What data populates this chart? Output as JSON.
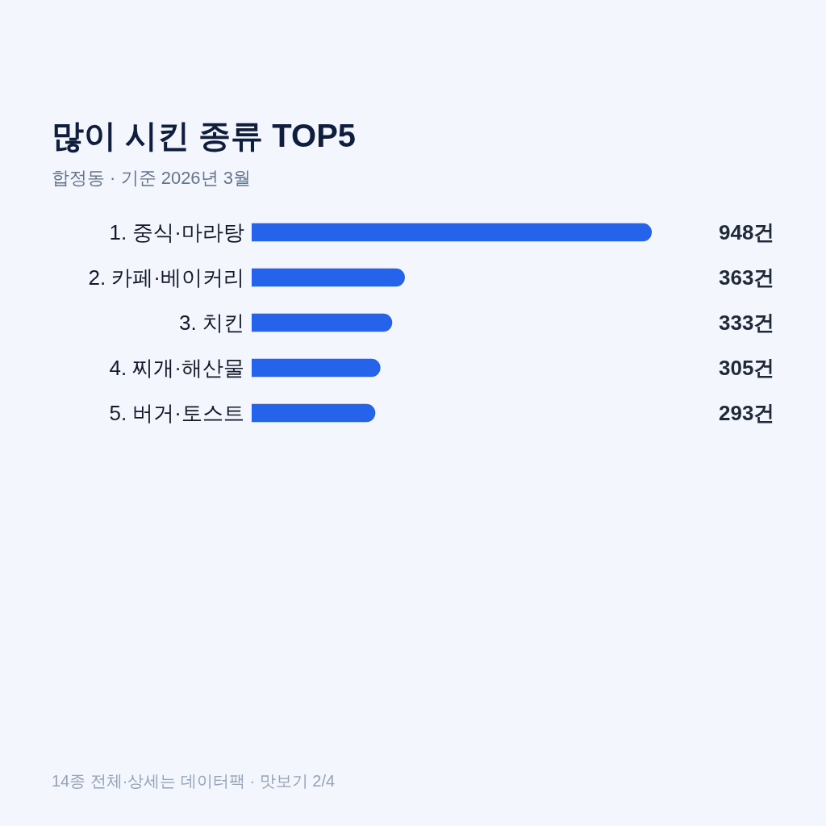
{
  "chart_data": {
    "type": "bar",
    "orientation": "horizontal",
    "title": "많이 시킨 종류 TOP5",
    "subtitle": "합정동 · 기준 2026년 3월",
    "categories": [
      "1. 중식·마라탕",
      "2. 카페·베이커리",
      "3. 치킨",
      "4. 찌개·해산물",
      "5. 버거·토스트"
    ],
    "values": [
      948,
      363,
      333,
      305,
      293
    ],
    "value_labels": [
      "948건",
      "363건",
      "333건",
      "305건",
      "293건"
    ],
    "color": "#2563eb",
    "annotations": [
      "14종 전체·상세는 데이터팩 · 맛보기 2/4"
    ]
  }
}
